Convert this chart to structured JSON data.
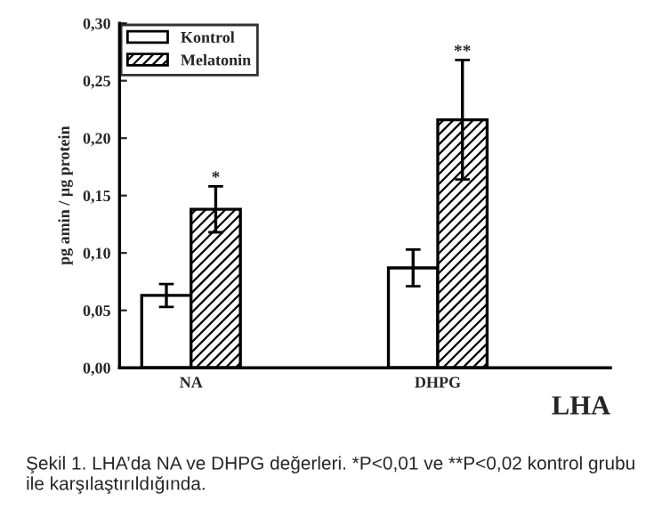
{
  "chart_data": {
    "type": "bar",
    "xlabel": "LHA",
    "ylabel": "pg amin / µg protein",
    "categories": [
      "NA",
      "DHPG"
    ],
    "series": [
      {
        "name": "Kontrol",
        "color": "#ffffff",
        "values": [
          0.063,
          0.087
        ],
        "errors": [
          0.01,
          0.016
        ]
      },
      {
        "name": "Melatonin",
        "color": "#000000",
        "values": [
          0.138,
          0.216
        ],
        "errors": [
          0.02,
          0.052
        ]
      }
    ],
    "ylim": [
      0,
      0.3
    ],
    "yticks": [
      {
        "value": 0,
        "label": "0,00"
      },
      {
        "value": 0.05,
        "label": "0,05"
      },
      {
        "value": 0.1,
        "label": "0,10"
      },
      {
        "value": 0.15,
        "label": "0,15"
      },
      {
        "value": 0.2,
        "label": "0,20"
      },
      {
        "value": 0.25,
        "label": "0,25"
      },
      {
        "value": 0.3,
        "label": "0,30"
      }
    ],
    "annotations": [
      "*",
      "**",
      "Şekil 1. LHA’da NA ve DHPG değerleri. *P<0,01 ve **P<0,02 kontrol grubu ile karşılaştırıldığında."
    ],
    "legend": "top left",
    "grid": false
  }
}
